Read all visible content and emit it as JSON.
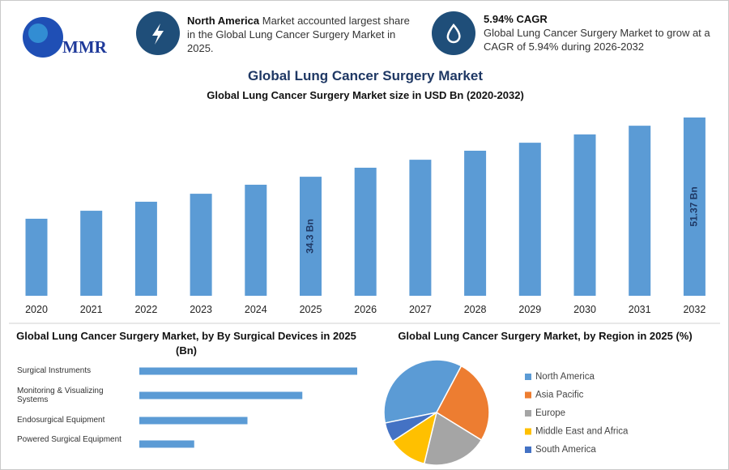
{
  "header": {
    "logo_text": "MMR",
    "items": [
      {
        "bold": "North America",
        "text": "Market accounted largest share in the Global Lung Cancer Surgery Market in 2025."
      },
      {
        "bold": "5.94% CAGR",
        "text": "Global Lung Cancer Surgery Market to grow at a CAGR of 5.94% during 2026-2032"
      }
    ],
    "title": "Global Lung Cancer Surgery Market"
  },
  "chart_data": [
    {
      "type": "bar",
      "title": "Global Lung Cancer Surgery Market size in USD Bn (2020-2032)",
      "categories": [
        "2020",
        "2021",
        "2022",
        "2023",
        "2024",
        "2025",
        "2026",
        "2027",
        "2028",
        "2029",
        "2030",
        "2031",
        "2032"
      ],
      "values": [
        22.2,
        24.5,
        27.1,
        29.4,
        32.0,
        34.3,
        36.9,
        39.2,
        41.8,
        44.1,
        46.5,
        49.0,
        51.37
      ],
      "value_labels": [
        null,
        null,
        null,
        null,
        null,
        "34.3 Bn",
        null,
        null,
        null,
        null,
        null,
        null,
        "51.37 Bn"
      ],
      "color": "#5b9bd5"
    },
    {
      "type": "hbar",
      "title": "Global Lung Cancer Surgery Market, by By Surgical Devices in 2025 (Bn)",
      "categories": [
        "Surgical Instruments",
        "Monitoring & Visualizing Systems",
        "Endosurgical Equipment",
        "Powered Surgical Equipment"
      ],
      "values": [
        13.5,
        10.1,
        6.7,
        3.4
      ],
      "color": "#5b9bd5"
    },
    {
      "type": "pie",
      "title": "Global Lung Cancer Surgery Market, by Region in 2025 (%)",
      "categories": [
        "North America",
        "Asia Pacific",
        "Europe",
        "Middle East and Africa",
        "South America"
      ],
      "values": [
        36,
        26,
        20,
        12,
        6
      ],
      "colors": [
        "#5b9bd5",
        "#ed7d31",
        "#a5a5a5",
        "#ffc000",
        "#4472c4"
      ]
    }
  ]
}
